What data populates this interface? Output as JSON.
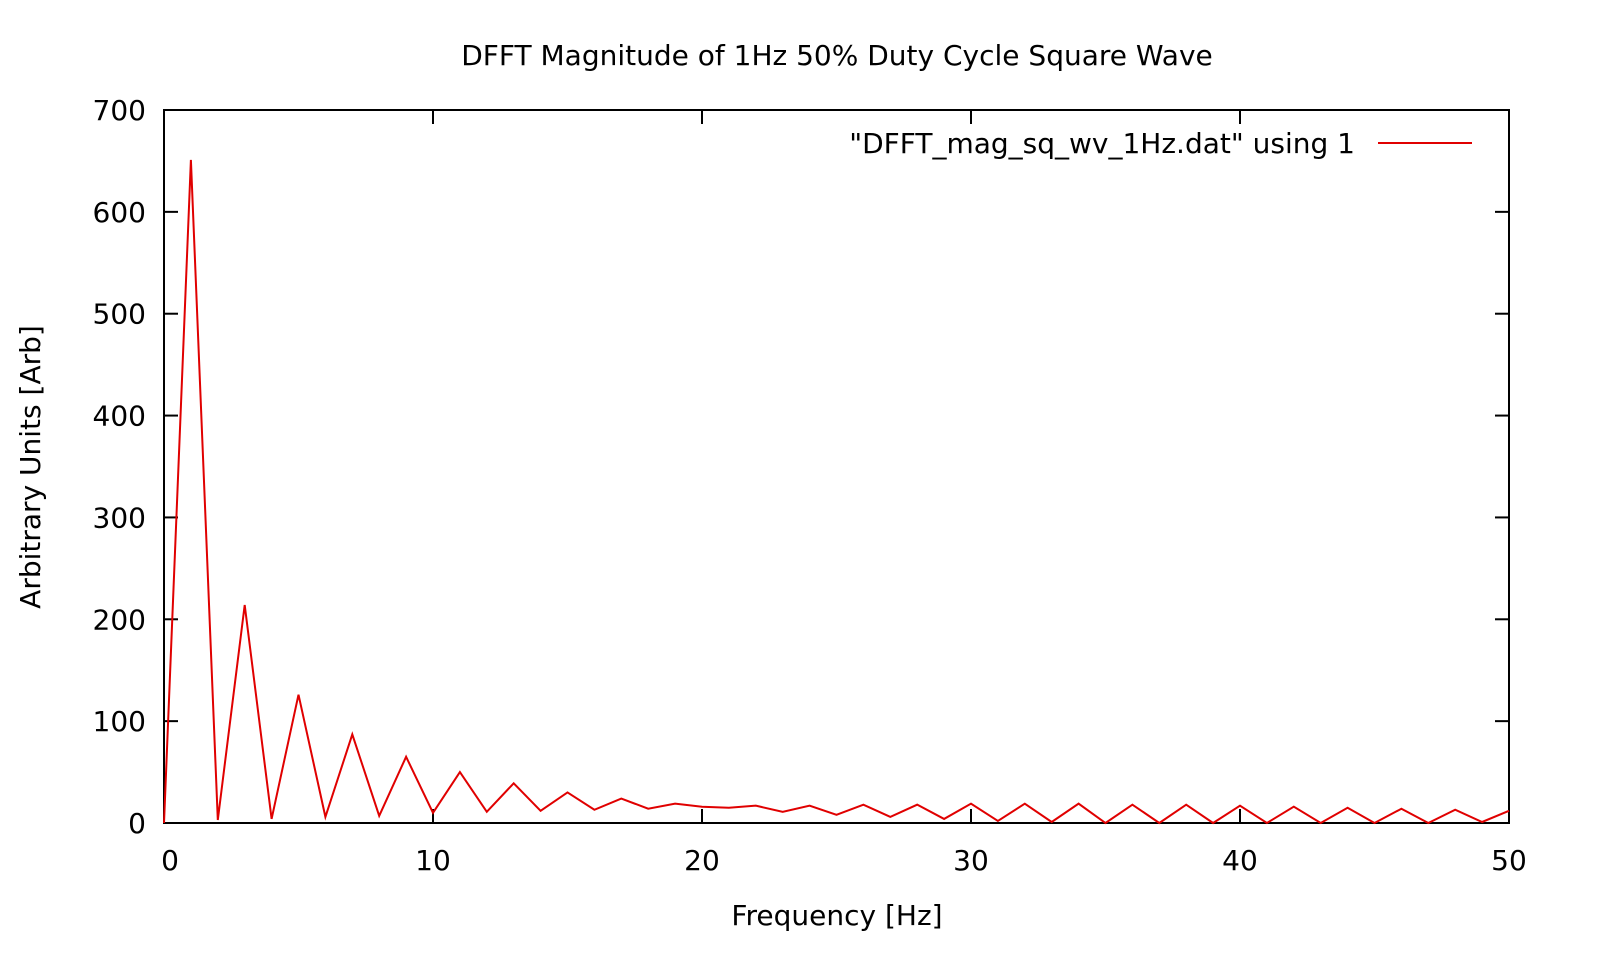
{
  "chart_data": {
    "type": "line",
    "title": "DFFT Magnitude of 1Hz 50% Duty Cycle Square Wave",
    "xlabel": "Frequency [Hz]",
    "ylabel": "Arbitrary Units [Arb]",
    "xlim": [
      0,
      50
    ],
    "ylim": [
      0,
      700
    ],
    "xticks": [
      "0",
      "10",
      "20",
      "30",
      "40",
      "50"
    ],
    "yticks": [
      "0",
      "100",
      "200",
      "300",
      "400",
      "500",
      "600",
      "700"
    ],
    "grid": false,
    "legend_position": "top-right",
    "series": [
      {
        "name": "\"DFFT_mag_sq_wv_1Hz.dat\" using 1",
        "color": "#e00000",
        "x": [
          0,
          1,
          2,
          3,
          4,
          5,
          6,
          7,
          8,
          9,
          10,
          11,
          12,
          13,
          14,
          15,
          16,
          17,
          18,
          19,
          20,
          21,
          22,
          23,
          24,
          25,
          26,
          27,
          28,
          29,
          30,
          31,
          32,
          33,
          34,
          35,
          36,
          37,
          38,
          39,
          40,
          41,
          42,
          43,
          44,
          45,
          46,
          47,
          48,
          49,
          50
        ],
        "values": [
          0,
          651,
          3,
          214,
          4,
          126,
          6,
          87,
          7,
          65,
          10,
          50,
          11,
          39,
          12,
          30,
          13,
          24,
          14,
          19,
          16,
          15,
          17,
          11,
          17,
          8,
          18,
          6,
          18,
          4,
          19,
          2,
          19,
          1,
          19,
          0,
          18,
          0,
          18,
          0,
          17,
          0,
          16,
          0,
          15,
          0,
          14,
          0,
          13,
          1,
          12
        ]
      }
    ]
  }
}
